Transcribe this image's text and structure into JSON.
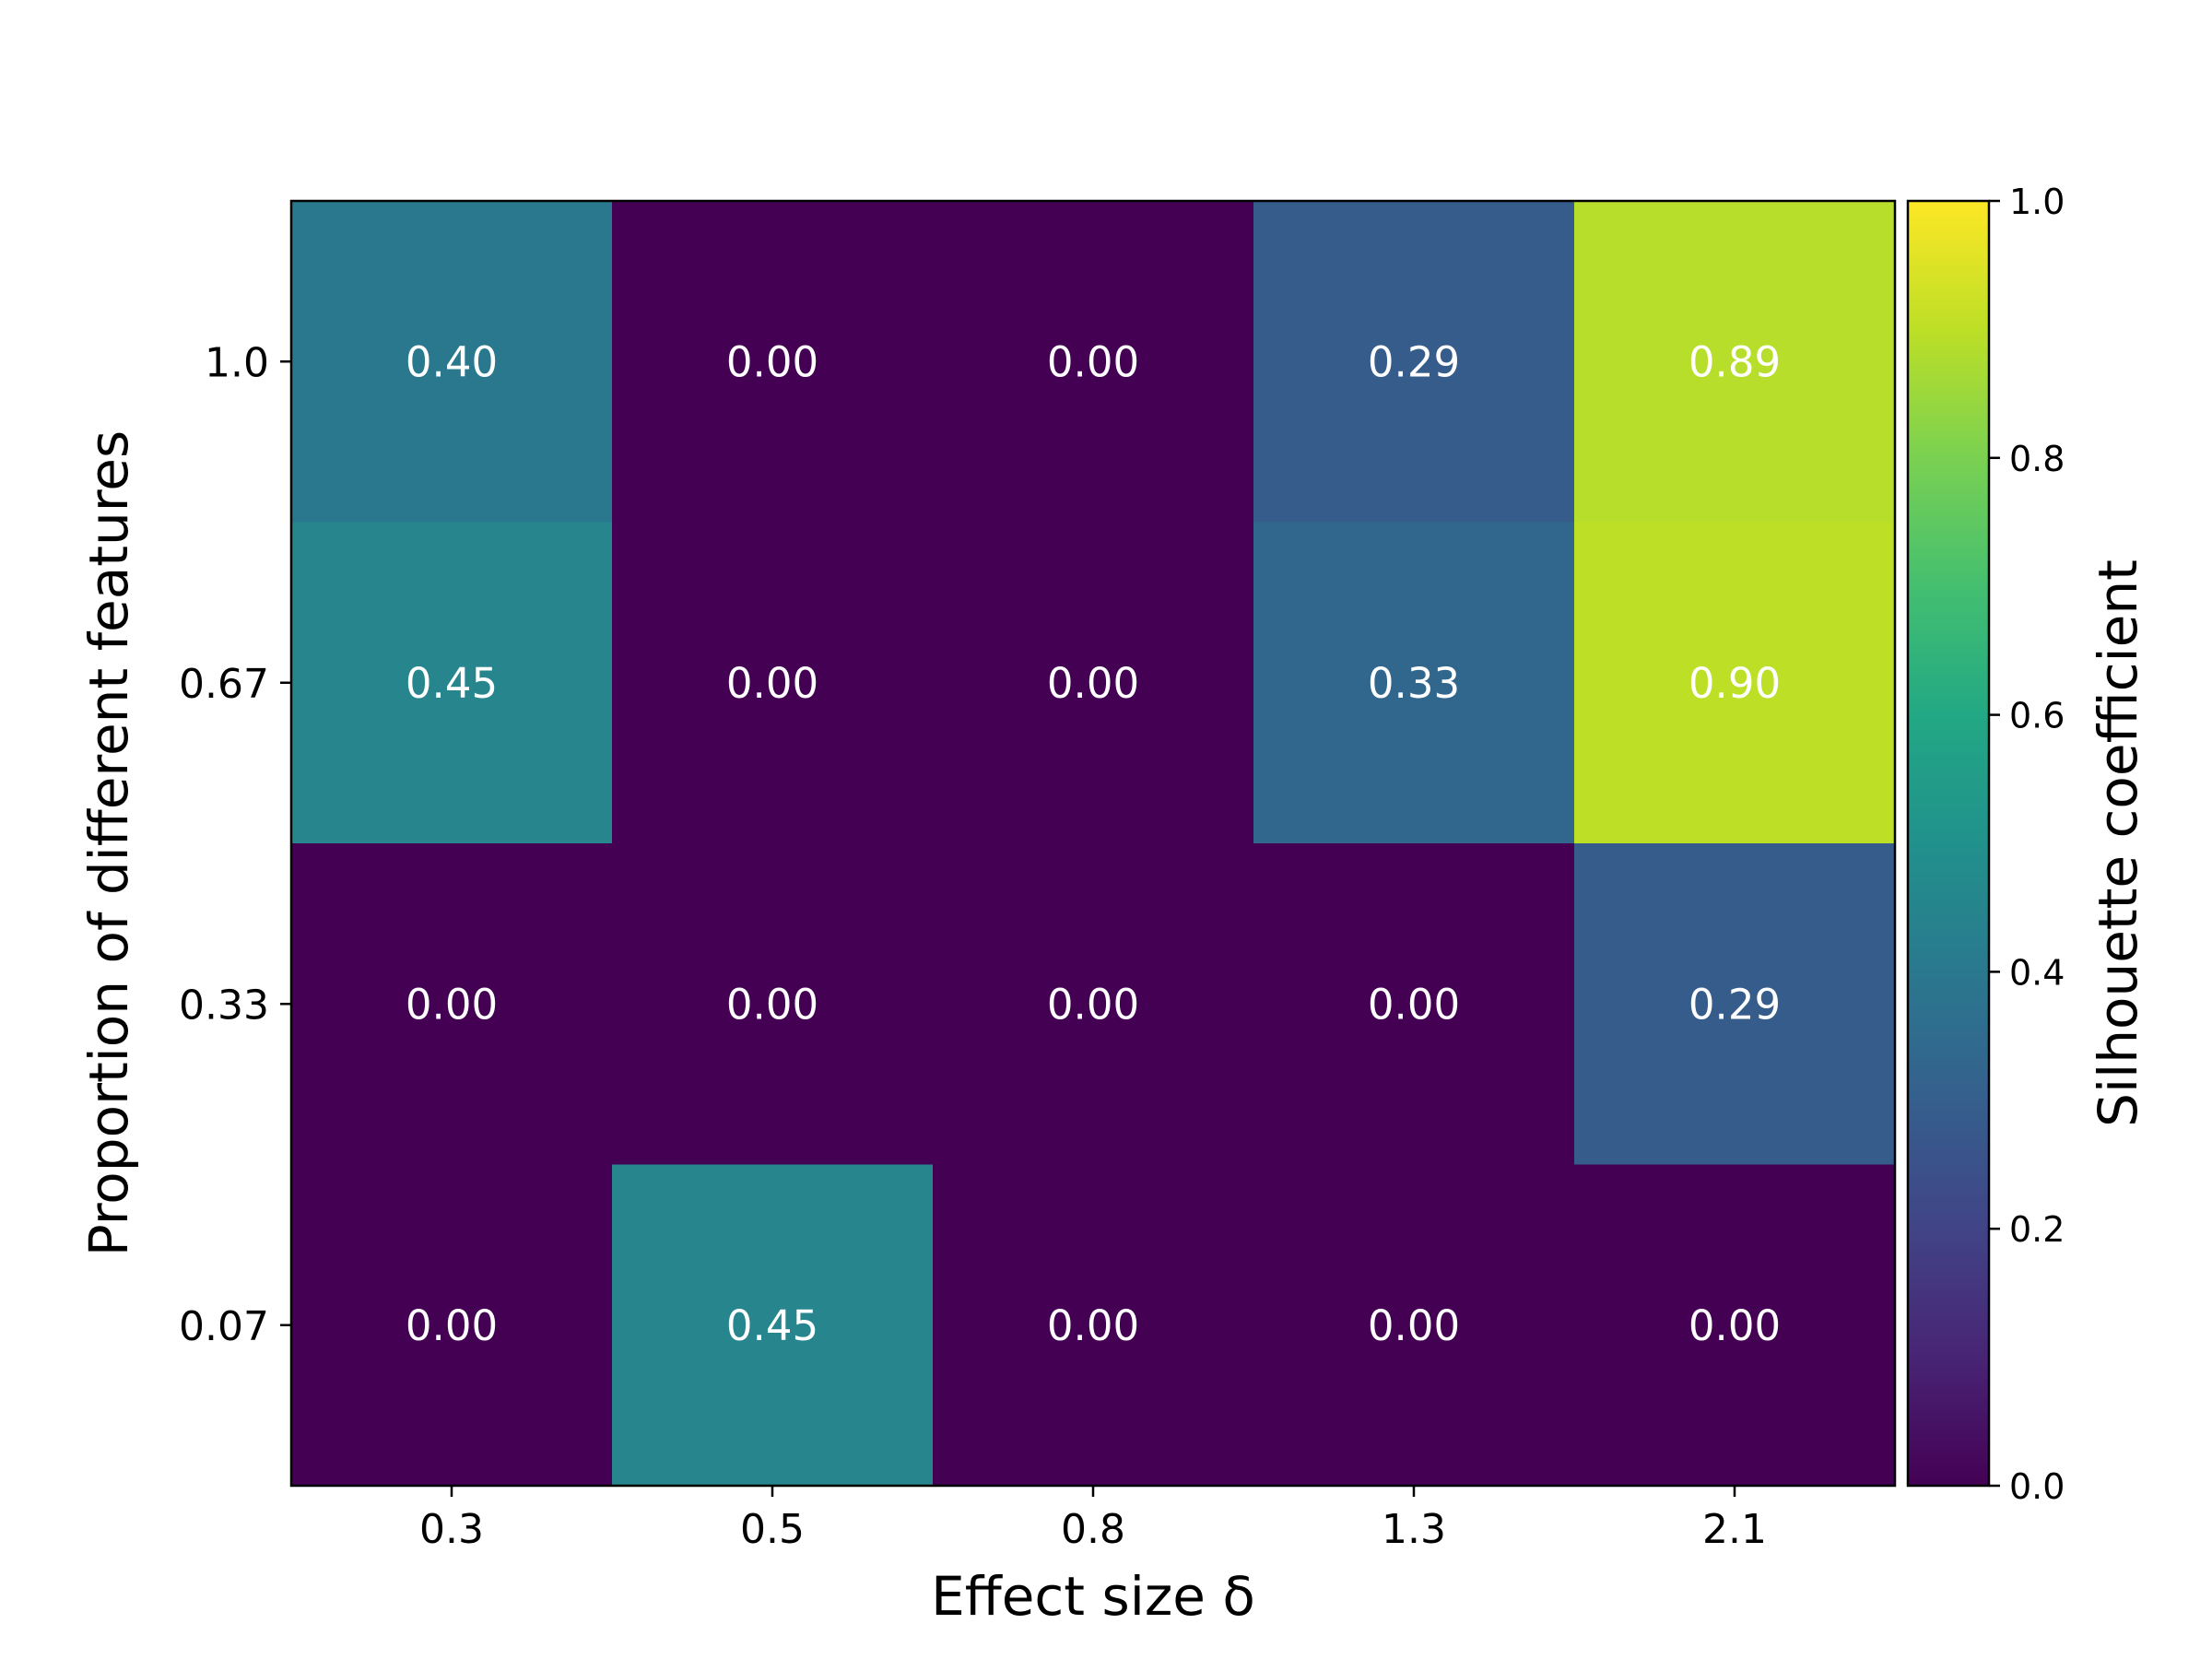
{
  "chart_data": {
    "type": "heatmap",
    "x_categories": [
      "0.3",
      "0.5",
      "0.8",
      "1.3",
      "2.1"
    ],
    "y_categories": [
      "1.0",
      "0.67",
      "0.33",
      "0.07"
    ],
    "values": [
      [
        0.4,
        0.0,
        0.0,
        0.29,
        0.89
      ],
      [
        0.45,
        0.0,
        0.0,
        0.33,
        0.9
      ],
      [
        0.0,
        0.0,
        0.0,
        0.0,
        0.29
      ],
      [
        0.0,
        0.45,
        0.0,
        0.0,
        0.0
      ]
    ],
    "cell_labels": [
      [
        "0.40",
        "0.00",
        "0.00",
        "0.29",
        "0.89"
      ],
      [
        "0.45",
        "0.00",
        "0.00",
        "0.33",
        "0.90"
      ],
      [
        "0.00",
        "0.00",
        "0.00",
        "0.00",
        "0.29"
      ],
      [
        "0.00",
        "0.45",
        "0.00",
        "0.00",
        "0.00"
      ]
    ],
    "xlabel": "Effect size δ",
    "ylabel": "Proportion of different features",
    "colorbar": {
      "label": "Silhouette coefficient",
      "range": [
        0.0,
        1.0
      ],
      "ticks": [
        "0.0",
        "0.2",
        "0.4",
        "0.6",
        "0.8",
        "1.0"
      ],
      "colormap": "viridis"
    }
  }
}
